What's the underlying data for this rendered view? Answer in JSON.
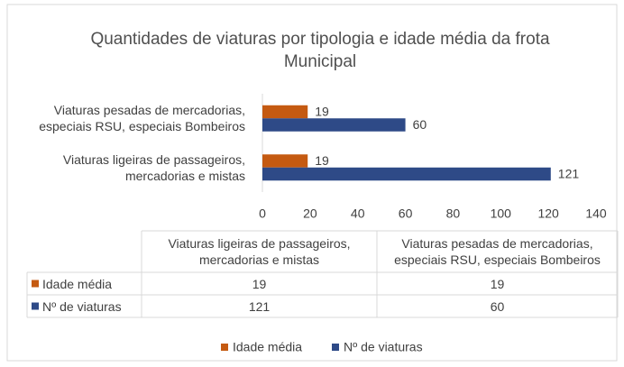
{
  "chart_data": {
    "type": "bar",
    "orientation": "horizontal",
    "title": "Quantidades de viaturas por tipologia e idade média da frota Municipal",
    "categories": [
      "Viaturas ligeiras de passageiros, mercadorias e mistas",
      "Viaturas pesadas de mercadorias, especiais RSU, especiais Bombeiros"
    ],
    "series": [
      {
        "name": "Idade média",
        "color": "#c55a11",
        "values": [
          19,
          19
        ]
      },
      {
        "name": "Nº de viaturas",
        "color": "#2e4a87",
        "values": [
          121,
          60
        ]
      }
    ],
    "xlim": [
      0,
      140
    ],
    "xticks": [
      0,
      20,
      40,
      60,
      80,
      100,
      120,
      140
    ],
    "data_table": true,
    "legend": "bottom"
  }
}
